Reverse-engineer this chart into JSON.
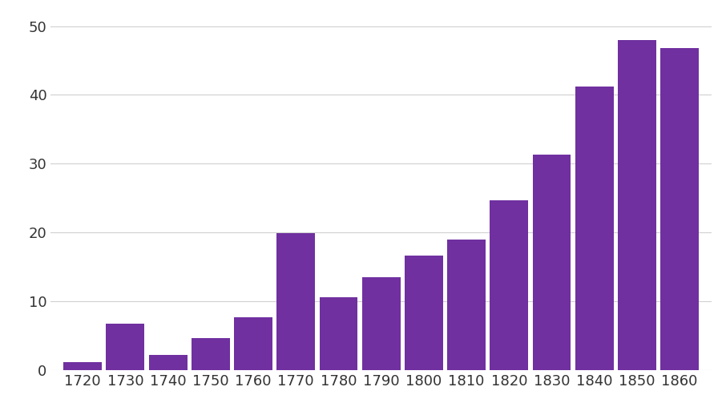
{
  "categories": [
    1720,
    1730,
    1740,
    1750,
    1760,
    1770,
    1780,
    1790,
    1800,
    1810,
    1820,
    1830,
    1840,
    1850,
    1860
  ],
  "values": [
    1.1,
    6.7,
    2.2,
    4.6,
    7.6,
    19.9,
    10.6,
    13.5,
    16.6,
    19.0,
    24.7,
    31.3,
    41.2,
    48.0,
    46.8
  ],
  "bar_color": "#7030a0",
  "background_color": "#ffffff",
  "ylim": [
    0,
    52
  ],
  "yticks": [
    0,
    10,
    20,
    30,
    40,
    50
  ],
  "grid_color": "#d0d0d0",
  "grid_linewidth": 0.8,
  "bar_width": 0.9,
  "tick_fontsize": 13,
  "tick_color": "#333333"
}
